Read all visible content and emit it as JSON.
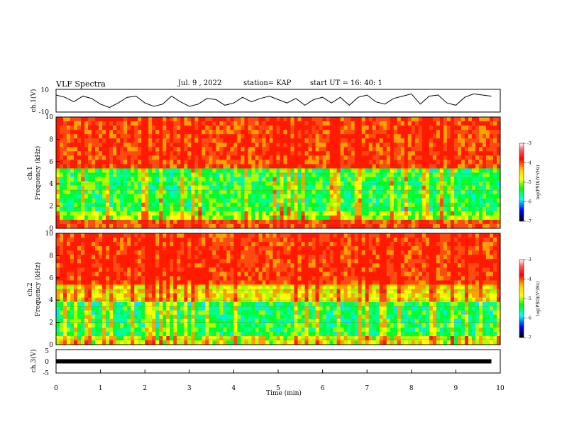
{
  "header": {
    "title": "VLF Spectra",
    "date": "Jul. 9 , 2022",
    "station": "station= KAP",
    "start": "start UT = 16: 40: 1"
  },
  "chart_data": [
    {
      "type": "line",
      "name": "ch1-waveform",
      "ylabel": "ch.1(V)",
      "ylim": [
        -10,
        10
      ],
      "y_ticks": [
        "10",
        "-10"
      ],
      "xlim": [
        0,
        10
      ],
      "x": [
        0,
        0.2,
        0.4,
        0.6,
        0.8,
        1,
        1.2,
        1.4,
        1.6,
        1.8,
        2,
        2.2,
        2.4,
        2.6,
        2.8,
        3,
        3.2,
        3.4,
        3.6,
        3.8,
        4,
        4.2,
        4.4,
        4.6,
        4.8,
        5,
        5.2,
        5.4,
        5.6,
        5.8,
        6,
        6.2,
        6.4,
        6.6,
        6.8,
        7,
        7.2,
        7.4,
        7.6,
        7.8,
        8,
        8.2,
        8.4,
        8.6,
        8.8,
        9,
        9.2,
        9.4,
        9.6,
        9.8
      ],
      "y": [
        5,
        3,
        -1,
        4,
        2,
        -3,
        -6,
        -2,
        3,
        4,
        -2,
        -5,
        -3,
        4,
        -1,
        -5,
        -3,
        2,
        1,
        -4,
        -2,
        3,
        -1,
        2,
        4,
        1,
        -2,
        2,
        -4,
        1,
        3,
        -2,
        3,
        -4,
        3,
        5,
        -1,
        -3,
        2,
        4,
        6,
        -3,
        4,
        5,
        -2,
        -4,
        3,
        6,
        5,
        4
      ]
    },
    {
      "type": "heatmap",
      "name": "ch1-spectrogram",
      "ylabel": "ch.1",
      "ylabel2": "Frequency (kHz)",
      "ylim": [
        0,
        10
      ],
      "y_ticks": [
        "0",
        "2",
        "4",
        "6",
        "8",
        "10"
      ],
      "xlim": [
        0,
        10
      ],
      "colorbar": {
        "label": "log(PSD)(V²/Hz)",
        "range": [
          -7,
          -3
        ],
        "ticks": [
          "-3",
          "-4",
          "-5",
          "-6",
          "-7"
        ]
      }
    },
    {
      "type": "heatmap",
      "name": "ch2-spectrogram",
      "ylabel": "ch.2",
      "ylabel2": "Frequency (kHz)",
      "ylim": [
        0,
        10
      ],
      "y_ticks": [
        "0",
        "2",
        "4",
        "6",
        "8",
        "10"
      ],
      "xlim": [
        0,
        10
      ],
      "colorbar": {
        "label": "log(PSD)(V²/Hz)",
        "range": [
          -7,
          -3
        ],
        "ticks": [
          "-3",
          "-4",
          "-5",
          "-6",
          "-7"
        ]
      }
    },
    {
      "type": "line",
      "name": "ch3-waveform",
      "ylabel": "ch.3(V)",
      "ylim": [
        -5,
        5
      ],
      "y_ticks": [
        "5",
        "0",
        "-5"
      ],
      "xlim": [
        0,
        10
      ],
      "x": [
        0,
        9.8
      ],
      "y": [
        0,
        0
      ]
    }
  ],
  "x_axis": {
    "label": "Time (min)",
    "ticks": [
      "0",
      "1",
      "2",
      "3",
      "4",
      "5",
      "6",
      "7",
      "8",
      "9",
      "10"
    ]
  }
}
